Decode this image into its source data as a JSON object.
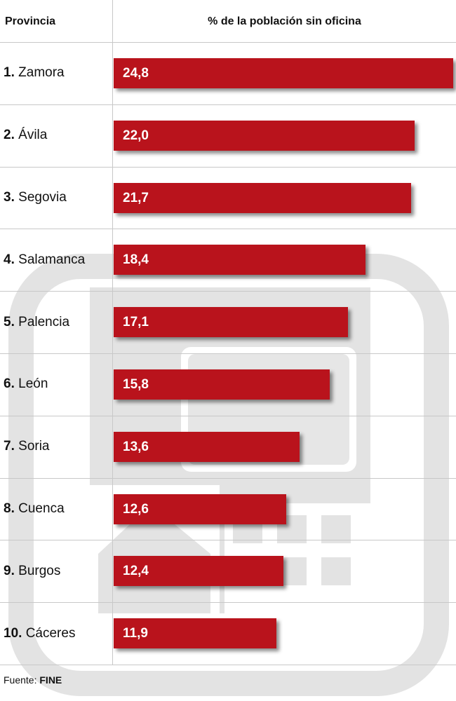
{
  "header": {
    "province_label": "Provincia",
    "value_label": "% de la población sin oficina"
  },
  "chart_data": {
    "type": "bar",
    "orientation": "horizontal",
    "categories": [
      "1. Zamora",
      "2. Ávila",
      "3. Segovia",
      "4. Salamanca",
      "5. Palencia",
      "6. León",
      "7. Soria",
      "8. Cuenca",
      "9. Burgos",
      "10. Cáceres"
    ],
    "rows": [
      {
        "rank": "1.",
        "name": "Zamora",
        "value": 24.8,
        "label": "24,8"
      },
      {
        "rank": "2.",
        "name": "Ávila",
        "value": 22.0,
        "label": "22,0"
      },
      {
        "rank": "3.",
        "name": "Segovia",
        "value": 21.7,
        "label": "21,7"
      },
      {
        "rank": "4.",
        "name": "Salamanca",
        "value": 18.4,
        "label": "18,4"
      },
      {
        "rank": "5.",
        "name": "Palencia",
        "value": 17.1,
        "label": "17,1"
      },
      {
        "rank": "6.",
        "name": "León",
        "value": 15.8,
        "label": "15,8"
      },
      {
        "rank": "7.",
        "name": "Soria",
        "value": 13.6,
        "label": "13,6"
      },
      {
        "rank": "8.",
        "name": "Cuenca",
        "value": 12.6,
        "label": "12,6"
      },
      {
        "rank": "9.",
        "name": "Burgos",
        "value": 12.4,
        "label": "12,4"
      },
      {
        "rank": "10.",
        "name": "Cáceres",
        "value": 11.9,
        "label": "11,9"
      }
    ],
    "xlim": [
      0,
      24.8
    ],
    "grid": false,
    "bar_color": "#b9131c"
  },
  "source": {
    "prefix": "Fuente: ",
    "name": "FINE"
  },
  "watermark_icon": "bank-branch-icon"
}
